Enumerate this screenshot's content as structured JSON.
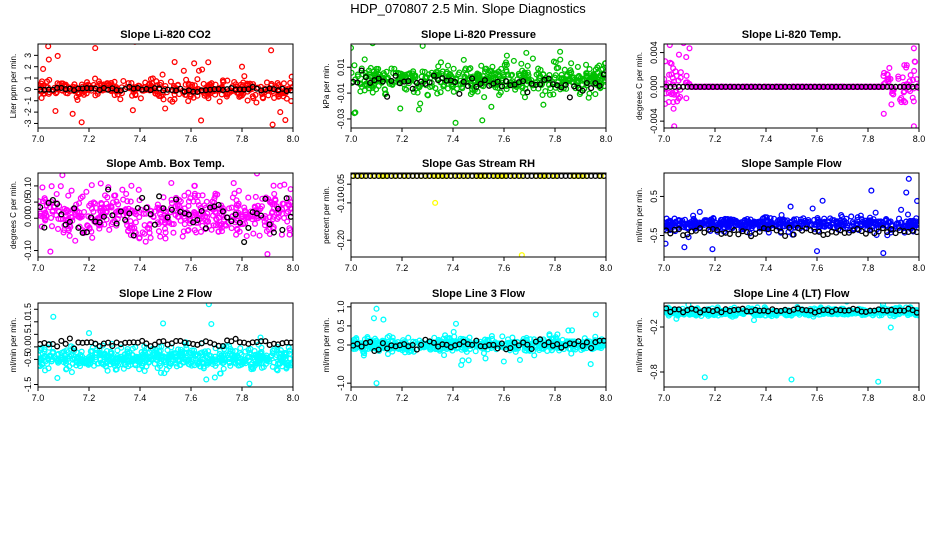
{
  "title": "HDP_070807  2.5 Min. Slope Diagnostics",
  "chart_data": [
    {
      "type": "scatter",
      "title": "Slope Li-820 CO2",
      "ylabel": "Liter ppm per min.",
      "xlim": [
        7.0,
        8.0
      ],
      "ylim": [
        -3.4,
        4.0
      ],
      "xticks": [
        "7.0",
        "7.2",
        "7.4",
        "7.6",
        "7.8",
        "8.0"
      ],
      "yticks": [
        "-3",
        "-2",
        "-1",
        "0",
        "1",
        "2",
        "3"
      ],
      "colors": {
        "main": "#ff0000",
        "ref": "#000000"
      },
      "n_main": 400,
      "spread": 0.6,
      "outlier_scale": 2.8,
      "outlier_frac": 0.12,
      "center": 0,
      "ref_center": 0,
      "ref_spread": 0.15,
      "n_ref": 60,
      "outliers": [
        [
          7.04,
          3.8
        ],
        [
          7.02,
          1.8
        ],
        [
          7.8,
          2.0
        ],
        [
          7.92,
          -3.1
        ],
        [
          7.97,
          -2.7
        ],
        [
          7.95,
          -2.0
        ]
      ]
    },
    {
      "type": "scatter",
      "title": "Slope Li-820 Pressure",
      "ylabel": "kPa per min.",
      "xlim": [
        7.0,
        8.0
      ],
      "ylim": [
        -0.037,
        0.028
      ],
      "xticks": [
        "7.0",
        "7.2",
        "7.4",
        "7.6",
        "7.8",
        "8.0"
      ],
      "yticks": [
        "-0.03",
        "-0.01",
        "0.01"
      ],
      "colors": {
        "main": "#00c000",
        "ref": "#000000"
      },
      "n_main": 500,
      "spread": 0.009,
      "outlier_scale": 0.02,
      "outlier_frac": 0.1,
      "center": 0,
      "ref_center": -0.002,
      "ref_spread": 0.006,
      "n_ref": 60,
      "outliers": [
        [
          7.0,
          0.025
        ],
        [
          7.41,
          -0.033
        ],
        [
          7.82,
          0.022
        ]
      ]
    },
    {
      "type": "scatter",
      "title": "Slope Li-820 Temp.",
      "ylabel": "degrees C per min.",
      "xlim": [
        7.0,
        8.0
      ],
      "ylim": [
        -0.0048,
        0.005
      ],
      "xticks": [
        "7.0",
        "7.2",
        "7.4",
        "7.6",
        "7.8",
        "8.0"
      ],
      "yticks": [
        "-0.004",
        "0.000",
        "0.004"
      ],
      "colors": {
        "main": "#ff00ff",
        "ref": "#000000"
      },
      "n_main": 400,
      "spread": 0.0,
      "outlier_scale": 0.0,
      "outlier_frac": 0.0,
      "center": 0,
      "ref_center": 0,
      "ref_spread": 0.0,
      "n_ref": 60,
      "edge_spread": 0.0025,
      "outliers": [
        [
          7.04,
          -0.0046
        ],
        [
          7.1,
          0.0045
        ],
        [
          7.98,
          -0.0046
        ],
        [
          7.98,
          0.0045
        ]
      ]
    },
    {
      "type": "scatter",
      "title": "Slope Amb. Box Temp.",
      "ylabel": "degrees C per min.",
      "xlim": [
        7.0,
        8.0
      ],
      "ylim": [
        -0.12,
        0.14
      ],
      "xticks": [
        "7.0",
        "7.2",
        "7.4",
        "7.6",
        "7.8",
        "8.0"
      ],
      "yticks": [
        "-0.10",
        "0.00",
        "0.05",
        "0.10"
      ],
      "colors": {
        "main": "#ff00ff",
        "ref": "#000000"
      },
      "n_main": 500,
      "spread": 0.06,
      "outlier_scale": 0.1,
      "outlier_frac": 0.05,
      "center": 0.01,
      "ref_center": 0.01,
      "ref_spread": 0.05,
      "n_ref": 60,
      "outliers": []
    },
    {
      "type": "scatter",
      "title": "Slope Gas Stream RH",
      "ylabel": "percent per min.",
      "xlim": [
        7.0,
        8.0
      ],
      "ylim": [
        -0.245,
        -0.02
      ],
      "xticks": [
        "7.0",
        "7.2",
        "7.4",
        "7.6",
        "7.8",
        "8.0"
      ],
      "yticks": [
        "-0.20",
        "-0.10",
        "-0.05"
      ],
      "colors": {
        "main": "#ffff00",
        "ref": "#000000"
      },
      "n_main": 60,
      "spread": 0.0,
      "outlier_scale": 0.0,
      "outlier_frac": 0.0,
      "center": -0.028,
      "ref_center": -0.028,
      "ref_spread": 0.0,
      "n_ref": 60,
      "outliers": [
        [
          7.33,
          -0.1
        ],
        [
          7.67,
          -0.24
        ]
      ]
    },
    {
      "type": "scatter",
      "title": "Slope Sample Flow",
      "ylabel": "ml/min per min.",
      "xlim": [
        7.0,
        8.0
      ],
      "ylim": [
        -1.05,
        1.1
      ],
      "xticks": [
        "7.0",
        "7.2",
        "7.4",
        "7.6",
        "7.8",
        "8.0"
      ],
      "yticks": [
        "-0.5",
        "0.5"
      ],
      "colors": {
        "main": "#0000ff",
        "ref": "#000000"
      },
      "n_main": 500,
      "spread": 0.12,
      "outlier_scale": 0.35,
      "outlier_frac": 0.08,
      "center": -0.2,
      "ref_center": -0.4,
      "ref_spread": 0.1,
      "n_ref": 60,
      "outliers": [
        [
          7.96,
          0.95
        ],
        [
          7.95,
          0.6
        ],
        [
          7.19,
          -0.85
        ],
        [
          7.86,
          -0.95
        ],
        [
          7.6,
          -0.9
        ],
        [
          7.08,
          -0.8
        ]
      ]
    },
    {
      "type": "scatter",
      "title": "Slope Line 2 Flow",
      "ylabel": "ml/min per min.",
      "xlim": [
        7.0,
        8.0
      ],
      "ylim": [
        -1.6,
        1.75
      ],
      "xticks": [
        "7.0",
        "7.2",
        "7.4",
        "7.6",
        "7.8",
        "8.0"
      ],
      "yticks": [
        "-1.5",
        "-0.5",
        "0.0",
        "0.5",
        "1.0",
        "1.5"
      ],
      "colors": {
        "main": "#00ffff",
        "ref": "#000000"
      },
      "n_main": 600,
      "spread": 0.35,
      "outlier_scale": 0.5,
      "outlier_frac": 0.05,
      "center": -0.45,
      "ref_center": 0.15,
      "ref_spread": 0.12,
      "n_ref": 60,
      "outliers": [
        [
          7.67,
          1.7
        ],
        [
          7.2,
          0.55
        ],
        [
          7.06,
          1.2
        ],
        [
          7.66,
          -1.3
        ]
      ]
    },
    {
      "type": "scatter",
      "title": "Slope Line 3 Flow",
      "ylabel": "ml/min per min.",
      "xlim": [
        7.0,
        8.0
      ],
      "ylim": [
        -1.1,
        1.1
      ],
      "xticks": [
        "7.0",
        "7.2",
        "7.4",
        "7.6",
        "7.8",
        "8.0"
      ],
      "yticks": [
        "-1.0",
        "0.0",
        "0.5",
        "1.0"
      ],
      "colors": {
        "main": "#00ffff",
        "ref": "#000000"
      },
      "n_main": 600,
      "spread": 0.14,
      "outlier_scale": 0.3,
      "outlier_frac": 0.06,
      "center": 0,
      "ref_center": 0,
      "ref_spread": 0.12,
      "n_ref": 60,
      "outliers": [
        [
          7.1,
          0.95
        ],
        [
          7.1,
          -1.0
        ],
        [
          7.09,
          0.7
        ],
        [
          7.96,
          0.8
        ],
        [
          7.94,
          -0.5
        ]
      ]
    },
    {
      "type": "scatter",
      "title": "Slope Line 4 (LT) Flow",
      "ylabel": "ml/min per min.",
      "xlim": [
        7.0,
        8.0
      ],
      "ylim": [
        -1.0,
        0.12
      ],
      "xticks": [
        "7.0",
        "7.2",
        "7.4",
        "7.6",
        "7.8",
        "8.0"
      ],
      "yticks": [
        "-0.8",
        "-0.2"
      ],
      "colors": {
        "main": "#00ffff",
        "ref": "#000000"
      },
      "n_main": 600,
      "spread": 0.04,
      "outlier_scale": 0.08,
      "outlier_frac": 0.03,
      "center": 0.0,
      "ref_center": 0.02,
      "ref_spread": 0.03,
      "n_ref": 60,
      "outliers": [
        [
          7.16,
          -0.87
        ],
        [
          7.5,
          -0.9
        ],
        [
          7.84,
          -0.93
        ]
      ]
    }
  ]
}
